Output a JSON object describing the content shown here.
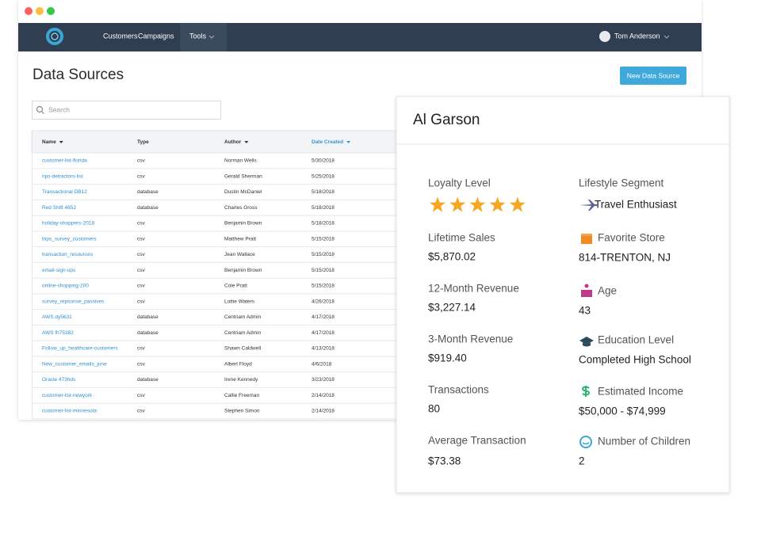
{
  "nav": {
    "items": [
      "Customers",
      "Campaigns",
      "Tools"
    ],
    "user": "Tom Anderson"
  },
  "page": {
    "title": "Data Sources",
    "button": "New Data Source",
    "search_placeholder": "Search"
  },
  "table": {
    "headers": [
      "Name",
      "Type",
      "Author",
      "Date Created"
    ],
    "rows": [
      [
        "customer-list-florida",
        "csv",
        "Norman Wells",
        "5/30/2018"
      ],
      [
        "nps-detractors-list",
        "csv",
        "Gerald Sherman",
        "5/25/2018"
      ],
      [
        "Transactional DB12",
        "database",
        "Dustin McDaniel",
        "5/18/2018"
      ],
      [
        "Red Shift 4652",
        "database",
        "Charles Gross",
        "5/18/2018"
      ],
      [
        "holiday-shoppers-2018",
        "csv",
        "Benjamin Brown",
        "5/18/2018"
      ],
      [
        "trips_survey_customers",
        "csv",
        "Matthew Pratt",
        "5/15/2018"
      ],
      [
        "transaction_resources",
        "csv",
        "Jean Wallace",
        "5/15/2018"
      ],
      [
        "email-sign-ups",
        "csv",
        "Benjamin Brown",
        "5/15/2018"
      ],
      [
        "online-shopping-200",
        "csv",
        "Cole Pratt",
        "5/15/2018"
      ],
      [
        "survey_repsonse_passives",
        "csv",
        "Lottie Waters",
        "4/26/2018"
      ],
      [
        "AWS dy5631",
        "database",
        "Centriam Admin",
        "4/17/2018"
      ],
      [
        "AWS fh75382",
        "database",
        "Centriam Admin",
        "4/17/2018"
      ],
      [
        "Follow_up_healthcare-customers",
        "csv",
        "Shawn Caldwell",
        "4/13/2018"
      ],
      [
        "New_customer_emails_june",
        "csv",
        "Albert Floyd",
        "4/6/2018"
      ],
      [
        "Oracle 473hds",
        "database",
        "Irene Kennedy",
        "3/23/2018"
      ],
      [
        "customer-list-newyork",
        "csv",
        "Callie Freeman",
        "2/14/2018"
      ],
      [
        "customer-list-minnesota",
        "csv",
        "Stephen Simon",
        "2/14/2018"
      ]
    ]
  },
  "profile": {
    "name": "Al Garson",
    "rating": 5,
    "left": [
      {
        "label": "Loyalty Level"
      },
      {
        "label": "Lifetime Sales",
        "value": "$5,870.02"
      },
      {
        "label": "12-Month Revenue",
        "value": "$3,227.14"
      },
      {
        "label": "3-Month Revenue",
        "value": "$919.40"
      },
      {
        "label": "Transactions",
        "value": "80"
      },
      {
        "label": "Average Transaction",
        "value": "$73.38"
      }
    ],
    "right": [
      {
        "label": "Lifestyle Segment",
        "value": "Travel Enthusiast"
      },
      {
        "label": "Favorite Store",
        "value": "814-TRENTON, NJ"
      },
      {
        "label": "Age",
        "value": "43"
      },
      {
        "label": "Education Level",
        "value": "Completed High School"
      },
      {
        "label": "Estimated Income",
        "value": "$50,000 - $74,999"
      },
      {
        "label": "Number of Children",
        "value": "2"
      }
    ]
  }
}
